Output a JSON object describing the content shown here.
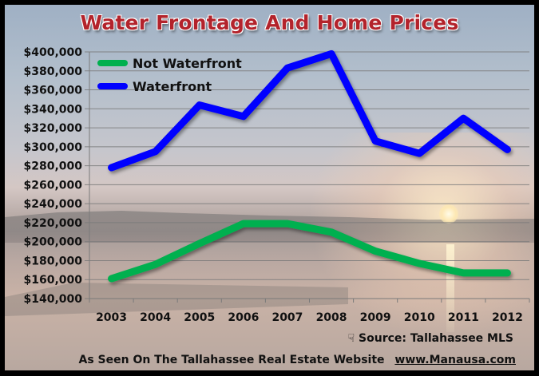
{
  "title": "Water Frontage And Home Prices",
  "source": {
    "icon": "hand-pointer-icon",
    "icon_glyph": "☟",
    "label": "Source: Tallahassee MLS"
  },
  "credit": {
    "text": "As Seen On The Tallahassee Real Estate Website",
    "link": "www.Manausa.com"
  },
  "colors": {
    "not_waterfront": "#00b04f",
    "waterfront": "#0000ff",
    "title": "#b3232b",
    "grid": "#7a7a7a"
  },
  "chart_data": {
    "type": "line",
    "title": "Water Frontage And Home Prices",
    "xlabel": "",
    "ylabel": "",
    "categories": [
      "2003",
      "2004",
      "2005",
      "2006",
      "2007",
      "2008",
      "2009",
      "2010",
      "2011",
      "2012"
    ],
    "series": [
      {
        "name": "Not Waterfront",
        "color": "#00b04f",
        "values": [
          161000,
          176000,
          198000,
          219000,
          219000,
          210000,
          190000,
          177000,
          167000,
          167000
        ]
      },
      {
        "name": "Waterfront",
        "color": "#0000ff",
        "values": [
          278000,
          295000,
          344000,
          332000,
          383000,
          398000,
          306000,
          293000,
          330000,
          297000
        ]
      }
    ],
    "ylim": [
      140000,
      400000
    ],
    "y_ticks": [
      "$400,000",
      "$380,000",
      "$360,000",
      "$340,000",
      "$320,000",
      "$300,000",
      "$280,000",
      "$260,000",
      "$240,000",
      "$220,000",
      "$200,000",
      "$180,000",
      "$160,000",
      "$140,000"
    ],
    "y_tick_values": [
      400000,
      380000,
      360000,
      340000,
      320000,
      300000,
      280000,
      260000,
      240000,
      220000,
      200000,
      180000,
      160000,
      140000
    ],
    "grid": true,
    "legend": {
      "position": "top-left",
      "entries": [
        "Not Waterfront",
        "Waterfront"
      ]
    }
  }
}
